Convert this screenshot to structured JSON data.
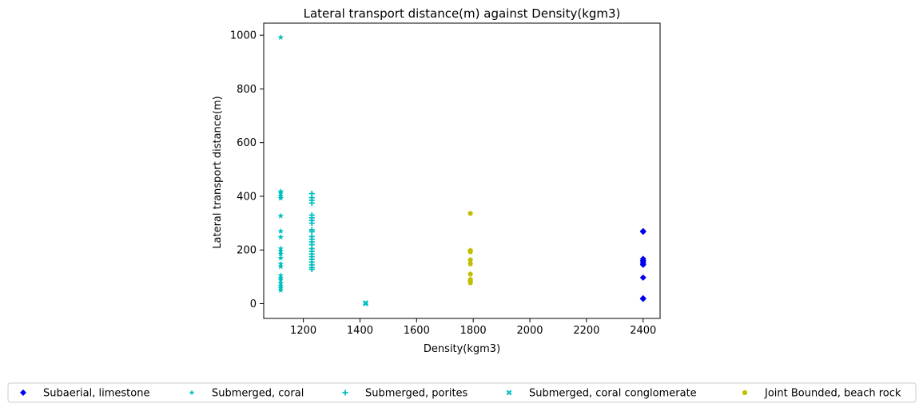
{
  "chart_data": {
    "type": "scatter",
    "title": "Lateral transport distance(m) against Density(kgm3)",
    "xlabel": "Density(kgm3)",
    "ylabel": "Lateral transport distance(m)",
    "xlim": [
      1060,
      2460
    ],
    "ylim": [
      -55,
      1045
    ],
    "xticks": [
      1200,
      1400,
      1600,
      1800,
      2000,
      2200,
      2400
    ],
    "yticks": [
      0,
      200,
      400,
      600,
      800,
      1000
    ],
    "grid": false,
    "legend_position": "bottom, outside plot, single row",
    "series": [
      {
        "name": "Subaerial, limestone",
        "marker": "diamond",
        "color": "#0000ee",
        "points": [
          [
            2400,
            270
          ],
          [
            2400,
            268
          ],
          [
            2400,
            167
          ],
          [
            2400,
            160
          ],
          [
            2400,
            155
          ],
          [
            2400,
            148
          ],
          [
            2400,
            145
          ],
          [
            2400,
            97
          ],
          [
            2400,
            20
          ],
          [
            2400,
            18
          ]
        ]
      },
      {
        "name": "Submerged, coral",
        "marker": "star",
        "color": "#00bfbf",
        "points": [
          [
            1120,
            992
          ],
          [
            1120,
            418
          ],
          [
            1120,
            412
          ],
          [
            1120,
            400
          ],
          [
            1120,
            393
          ],
          [
            1120,
            327
          ],
          [
            1120,
            270
          ],
          [
            1120,
            248
          ],
          [
            1120,
            205
          ],
          [
            1120,
            195
          ],
          [
            1120,
            185
          ],
          [
            1120,
            170
          ],
          [
            1120,
            148
          ],
          [
            1120,
            138
          ],
          [
            1120,
            105
          ],
          [
            1120,
            95
          ],
          [
            1120,
            88
          ],
          [
            1120,
            75
          ],
          [
            1120,
            65
          ],
          [
            1120,
            58
          ],
          [
            1120,
            50
          ]
        ]
      },
      {
        "name": "Submerged, porites",
        "marker": "plus",
        "color": "#00bfbf",
        "points": [
          [
            1230,
            410
          ],
          [
            1230,
            395
          ],
          [
            1230,
            385
          ],
          [
            1230,
            375
          ],
          [
            1230,
            330
          ],
          [
            1230,
            320
          ],
          [
            1230,
            310
          ],
          [
            1230,
            300
          ],
          [
            1230,
            275
          ],
          [
            1230,
            268
          ],
          [
            1230,
            250
          ],
          [
            1230,
            240
          ],
          [
            1230,
            230
          ],
          [
            1230,
            220
          ],
          [
            1230,
            205
          ],
          [
            1230,
            195
          ],
          [
            1230,
            185
          ],
          [
            1230,
            175
          ],
          [
            1230,
            165
          ],
          [
            1230,
            155
          ],
          [
            1230,
            145
          ],
          [
            1230,
            135
          ],
          [
            1230,
            128
          ]
        ]
      },
      {
        "name": "Submerged, coral conglomerate",
        "marker": "x",
        "color": "#00bfbf",
        "points": [
          [
            1420,
            3
          ],
          [
            1420,
            0
          ]
        ]
      },
      {
        "name": "Joint Bounded, beach rock",
        "marker": "pentagon",
        "color": "#bfbf00",
        "points": [
          [
            1790,
            336
          ],
          [
            1790,
            198
          ],
          [
            1790,
            193
          ],
          [
            1790,
            163
          ],
          [
            1790,
            148
          ],
          [
            1790,
            110
          ],
          [
            1790,
            90
          ],
          [
            1790,
            83
          ],
          [
            1790,
            78
          ]
        ]
      }
    ]
  }
}
